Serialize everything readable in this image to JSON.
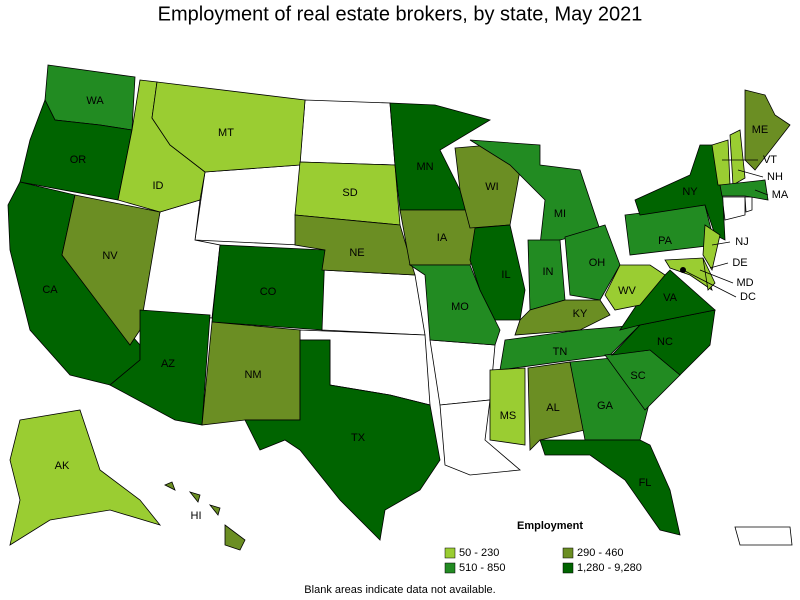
{
  "map": {
    "title": "Employment of real estate brokers, by state, May 2021",
    "legend": {
      "title": "Employment",
      "items": [
        {
          "label": "50 - 230",
          "color": "#9acd32"
        },
        {
          "label": "510 - 850",
          "color": "#228b22"
        },
        {
          "label": "290 - 460",
          "color": "#6b8e23"
        },
        {
          "label": "1,280 - 9,280",
          "color": "#006400"
        }
      ]
    },
    "note": "Blank areas indicate data not available.",
    "states": [
      {
        "abbr": "WA",
        "color": "#228b22"
      },
      {
        "abbr": "OR",
        "color": "#006400"
      },
      {
        "abbr": "CA",
        "color": "#006400"
      },
      {
        "abbr": "NV",
        "color": "#6b8e23"
      },
      {
        "abbr": "ID",
        "color": "#9acd32"
      },
      {
        "abbr": "MT",
        "color": "#9acd32"
      },
      {
        "abbr": "AZ",
        "color": "#006400"
      },
      {
        "abbr": "CO",
        "color": "#006400"
      },
      {
        "abbr": "NM",
        "color": "#6b8e23"
      },
      {
        "abbr": "TX",
        "color": "#006400"
      },
      {
        "abbr": "SD",
        "color": "#9acd32"
      },
      {
        "abbr": "NE",
        "color": "#6b8e23"
      },
      {
        "abbr": "MN",
        "color": "#006400"
      },
      {
        "abbr": "IA",
        "color": "#6b8e23"
      },
      {
        "abbr": "MO",
        "color": "#228b22"
      },
      {
        "abbr": "WI",
        "color": "#6b8e23"
      },
      {
        "abbr": "IL",
        "color": "#006400"
      },
      {
        "abbr": "MI",
        "color": "#228b22"
      },
      {
        "abbr": "IN",
        "color": "#228b22"
      },
      {
        "abbr": "OH",
        "color": "#228b22"
      },
      {
        "abbr": "KY",
        "color": "#6b8e23"
      },
      {
        "abbr": "TN",
        "color": "#228b22"
      },
      {
        "abbr": "MS",
        "color": "#9acd32"
      },
      {
        "abbr": "AL",
        "color": "#6b8e23"
      },
      {
        "abbr": "GA",
        "color": "#228b22"
      },
      {
        "abbr": "FL",
        "color": "#006400"
      },
      {
        "abbr": "SC",
        "color": "#228b22"
      },
      {
        "abbr": "NC",
        "color": "#006400"
      },
      {
        "abbr": "VA",
        "color": "#006400"
      },
      {
        "abbr": "WV",
        "color": "#9acd32"
      },
      {
        "abbr": "PA",
        "color": "#228b22"
      },
      {
        "abbr": "NY",
        "color": "#006400"
      },
      {
        "abbr": "NJ",
        "color": "#9acd32"
      },
      {
        "abbr": "MD",
        "color": "#9acd32"
      },
      {
        "abbr": "DE",
        "color": "#9acd32"
      },
      {
        "abbr": "VT",
        "color": "#9acd32"
      },
      {
        "abbr": "NH",
        "color": "#9acd32"
      },
      {
        "abbr": "ME",
        "color": "#6b8e23"
      },
      {
        "abbr": "MA",
        "color": "#228b22"
      },
      {
        "abbr": "AK",
        "color": "#9acd32"
      },
      {
        "abbr": "HI",
        "color": "#6b8e23"
      },
      {
        "abbr": "DC",
        "color": "#000000"
      }
    ]
  }
}
